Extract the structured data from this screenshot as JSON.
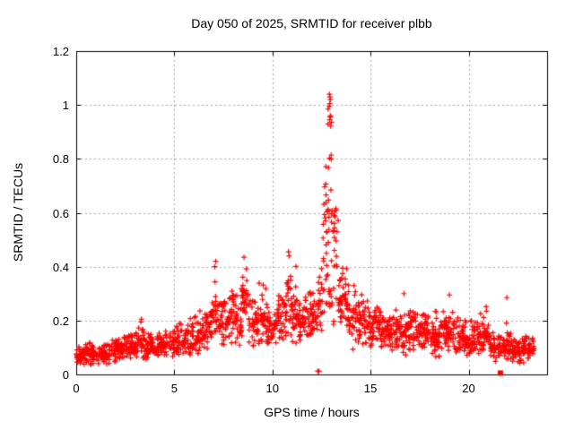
{
  "window": {
    "background": "#ffffff",
    "border_color": "#000000"
  },
  "chart_data": {
    "type": "scatter",
    "title": "Day 050 of 2025, SRMTID for receiver plbb",
    "xlabel": "GPS time / hours",
    "ylabel": "SRMTID / TECUs",
    "xlim": [
      0,
      24
    ],
    "ylim": [
      0,
      1.2
    ],
    "xticks": [
      {
        "v": 0,
        "label": "0"
      },
      {
        "v": 5,
        "label": "5"
      },
      {
        "v": 10,
        "label": "10"
      },
      {
        "v": 15,
        "label": "15"
      },
      {
        "v": 20,
        "label": "20"
      }
    ],
    "yticks": [
      {
        "v": 0,
        "label": "0"
      },
      {
        "v": 0.2,
        "label": "0.2"
      },
      {
        "v": 0.4,
        "label": "0.4"
      },
      {
        "v": 0.6,
        "label": "0.6"
      },
      {
        "v": 0.8,
        "label": "0.8"
      },
      {
        "v": 1,
        "label": "1"
      },
      {
        "v": 1.2,
        "label": "1.2"
      }
    ],
    "grid": {
      "show": true,
      "color": "#a8a8a8",
      "style": "dashed"
    },
    "legend": "none",
    "marker": {
      "shape": "plus",
      "color": "#ff0000",
      "size": 7
    },
    "segments_format": [
      "t_start_h",
      "t_end_h",
      "n_points",
      "y_min",
      "y_max",
      "y_typical",
      "uniform_column_flag"
    ],
    "segments": [
      [
        0.0,
        0.3,
        30,
        0.02,
        0.13,
        0.065,
        0
      ],
      [
        0.3,
        1.0,
        55,
        0.03,
        0.12,
        0.07,
        0
      ],
      [
        1.0,
        1.7,
        55,
        0.03,
        0.12,
        0.075,
        0
      ],
      [
        1.7,
        2.4,
        55,
        0.04,
        0.14,
        0.08,
        0
      ],
      [
        2.4,
        3.1,
        55,
        0.04,
        0.16,
        0.09,
        0
      ],
      [
        3.1,
        3.5,
        32,
        0.05,
        0.2,
        0.1,
        0
      ],
      [
        3.5,
        4.2,
        55,
        0.05,
        0.16,
        0.1,
        0
      ],
      [
        4.2,
        5.0,
        60,
        0.05,
        0.17,
        0.11,
        0
      ],
      [
        5.0,
        5.8,
        60,
        0.06,
        0.19,
        0.11,
        0
      ],
      [
        5.8,
        6.3,
        40,
        0.06,
        0.22,
        0.12,
        0
      ],
      [
        6.3,
        6.9,
        48,
        0.08,
        0.26,
        0.14,
        0
      ],
      [
        6.9,
        7.2,
        24,
        0.1,
        0.38,
        0.17,
        0
      ],
      [
        7.2,
        7.8,
        48,
        0.1,
        0.32,
        0.17,
        0
      ],
      [
        7.8,
        8.4,
        48,
        0.1,
        0.34,
        0.19,
        0
      ],
      [
        8.4,
        8.8,
        34,
        0.12,
        0.44,
        0.22,
        0
      ],
      [
        8.8,
        9.3,
        40,
        0.08,
        0.3,
        0.16,
        0
      ],
      [
        9.3,
        9.7,
        32,
        0.1,
        0.38,
        0.18,
        0
      ],
      [
        9.7,
        10.2,
        40,
        0.07,
        0.26,
        0.14,
        0
      ],
      [
        10.2,
        10.7,
        40,
        0.1,
        0.36,
        0.18,
        0
      ],
      [
        10.7,
        11.0,
        26,
        0.12,
        0.46,
        0.22,
        0
      ],
      [
        11.0,
        11.3,
        26,
        0.1,
        0.42,
        0.19,
        0
      ],
      [
        11.3,
        11.9,
        48,
        0.08,
        0.3,
        0.16,
        0
      ],
      [
        11.9,
        12.3,
        34,
        0.1,
        0.38,
        0.18,
        0
      ],
      [
        12.3,
        12.55,
        22,
        0.12,
        0.46,
        0.22,
        0
      ],
      [
        12.55,
        12.8,
        26,
        0.18,
        0.78,
        0.35,
        1
      ],
      [
        12.8,
        13.05,
        30,
        0.22,
        1.0,
        0.55,
        1
      ],
      [
        13.05,
        13.35,
        22,
        0.18,
        0.62,
        0.3,
        1
      ],
      [
        13.35,
        13.8,
        40,
        0.15,
        0.4,
        0.24,
        0
      ],
      [
        13.8,
        14.3,
        40,
        0.08,
        0.34,
        0.18,
        0
      ],
      [
        14.3,
        14.9,
        48,
        0.1,
        0.3,
        0.17,
        0
      ],
      [
        14.9,
        15.5,
        50,
        0.08,
        0.26,
        0.15,
        0
      ],
      [
        15.5,
        16.1,
        50,
        0.08,
        0.24,
        0.14,
        0
      ],
      [
        16.1,
        16.8,
        55,
        0.06,
        0.28,
        0.13,
        0
      ],
      [
        16.8,
        17.4,
        50,
        0.08,
        0.26,
        0.14,
        0
      ],
      [
        17.4,
        18.0,
        50,
        0.08,
        0.28,
        0.14,
        0
      ],
      [
        18.0,
        18.6,
        50,
        0.06,
        0.24,
        0.12,
        0
      ],
      [
        18.6,
        19.2,
        50,
        0.08,
        0.28,
        0.14,
        0
      ],
      [
        19.2,
        19.9,
        55,
        0.06,
        0.22,
        0.12,
        0
      ],
      [
        19.9,
        20.6,
        55,
        0.05,
        0.2,
        0.11,
        0
      ],
      [
        20.6,
        21.1,
        40,
        0.06,
        0.26,
        0.12,
        0
      ],
      [
        21.1,
        21.7,
        45,
        0.04,
        0.16,
        0.09,
        0
      ],
      [
        21.7,
        22.2,
        38,
        0.04,
        0.28,
        0.1,
        0
      ],
      [
        22.2,
        22.8,
        48,
        0.04,
        0.14,
        0.08,
        0
      ],
      [
        22.8,
        23.35,
        40,
        0.04,
        0.15,
        0.085,
        0
      ]
    ],
    "notable_points": [
      [
        12.91,
        1.04
      ],
      [
        12.93,
        1.03
      ],
      [
        12.95,
        1.02
      ],
      [
        12.92,
        1.005
      ],
      [
        12.9,
        0.995
      ],
      [
        12.94,
        0.955
      ],
      [
        12.92,
        0.945
      ],
      [
        7.06,
        0.4
      ],
      [
        7.11,
        0.42
      ],
      [
        3.32,
        0.205
      ],
      [
        6.08,
        0.215
      ],
      [
        8.55,
        0.435
      ],
      [
        10.82,
        0.455
      ],
      [
        10.85,
        0.44
      ],
      [
        16.7,
        0.3
      ],
      [
        19.02,
        0.295
      ],
      [
        21.95,
        0.285
      ]
    ],
    "low_outliers": [
      [
        12.31,
        0.012
      ],
      [
        12.37,
        0.012
      ]
    ],
    "square_point": {
      "x": 21.62,
      "y": 0.005,
      "marker": "filled-square",
      "color": "#ff0000"
    }
  }
}
